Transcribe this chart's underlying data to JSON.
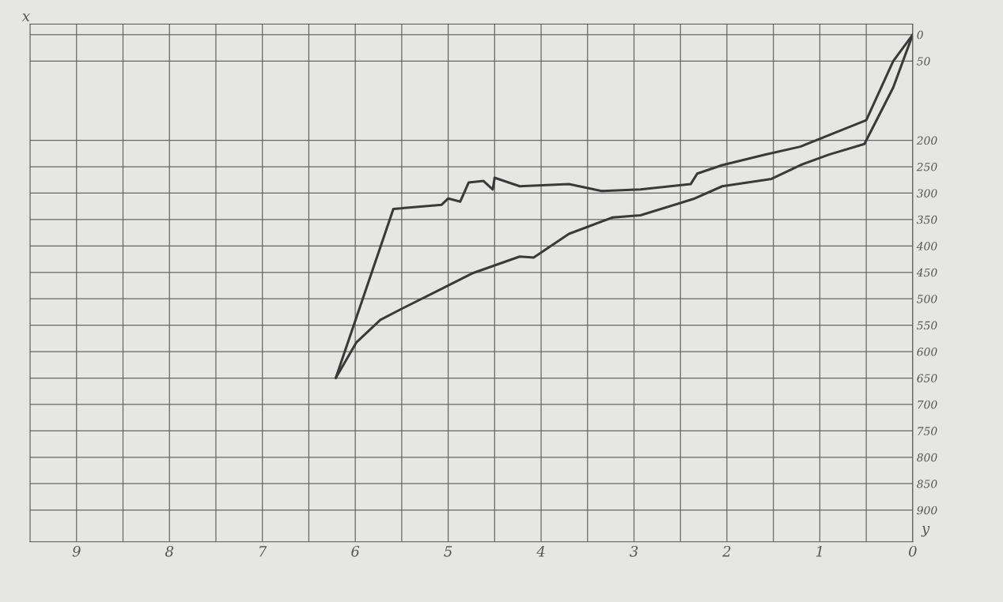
{
  "chart_data": {
    "type": "line",
    "xlabel": "x",
    "ylabel": "y",
    "xlim": [
      9.5,
      0
    ],
    "ylim": [
      960,
      -20
    ],
    "xticks": [
      {
        "value": 9,
        "label": "9"
      },
      {
        "value": 8.5,
        "label": null
      },
      {
        "value": 8,
        "label": "8"
      },
      {
        "value": 7.5,
        "label": null
      },
      {
        "value": 7,
        "label": "7"
      },
      {
        "value": 6.5,
        "label": null
      },
      {
        "value": 6,
        "label": "6"
      },
      {
        "value": 5.5,
        "label": null
      },
      {
        "value": 5,
        "label": "5"
      },
      {
        "value": 4.5,
        "label": null
      },
      {
        "value": 4,
        "label": "4"
      },
      {
        "value": 3.5,
        "label": null
      },
      {
        "value": 3,
        "label": "3"
      },
      {
        "value": 2.5,
        "label": null
      },
      {
        "value": 2,
        "label": "2"
      },
      {
        "value": 1.5,
        "label": null
      },
      {
        "value": 1,
        "label": "1"
      },
      {
        "value": 0.5,
        "label": null
      },
      {
        "value": 0,
        "label": "0"
      }
    ],
    "yticks": [
      0,
      50,
      200,
      250,
      300,
      350,
      400,
      450,
      500,
      550,
      600,
      650,
      700,
      750,
      800,
      850,
      900
    ],
    "grid": true,
    "marker": "none",
    "line_style": "solid",
    "series": [
      {
        "color": "#3a3a3a",
        "x": [
          6.21,
          5.59,
          5.07,
          5.0,
          4.87,
          4.78,
          4.62,
          4.52,
          4.5,
          4.23,
          3.7,
          3.35,
          2.93,
          2.39,
          2.32,
          2.05,
          1.59,
          1.21,
          0.5,
          0.21,
          0
        ],
        "values": [
          650,
          330,
          322,
          310,
          316,
          280,
          277,
          293,
          271,
          287,
          283,
          296,
          293,
          283,
          263,
          247,
          227,
          212,
          162,
          50,
          0
        ]
      },
      {
        "color": "#3a3a3a",
        "x": [
          6.21,
          5.99,
          5.73,
          5.49,
          5.08,
          4.73,
          4.23,
          4.08,
          3.7,
          3.23,
          2.93,
          2.36,
          2.05,
          1.52,
          1.21,
          0.9,
          0.52,
          0.21,
          0
        ],
        "values": [
          650,
          583,
          540,
          518,
          482,
          451,
          420,
          422,
          377,
          346,
          342,
          311,
          287,
          273,
          247,
          227,
          207,
          100,
          0
        ]
      }
    ]
  }
}
